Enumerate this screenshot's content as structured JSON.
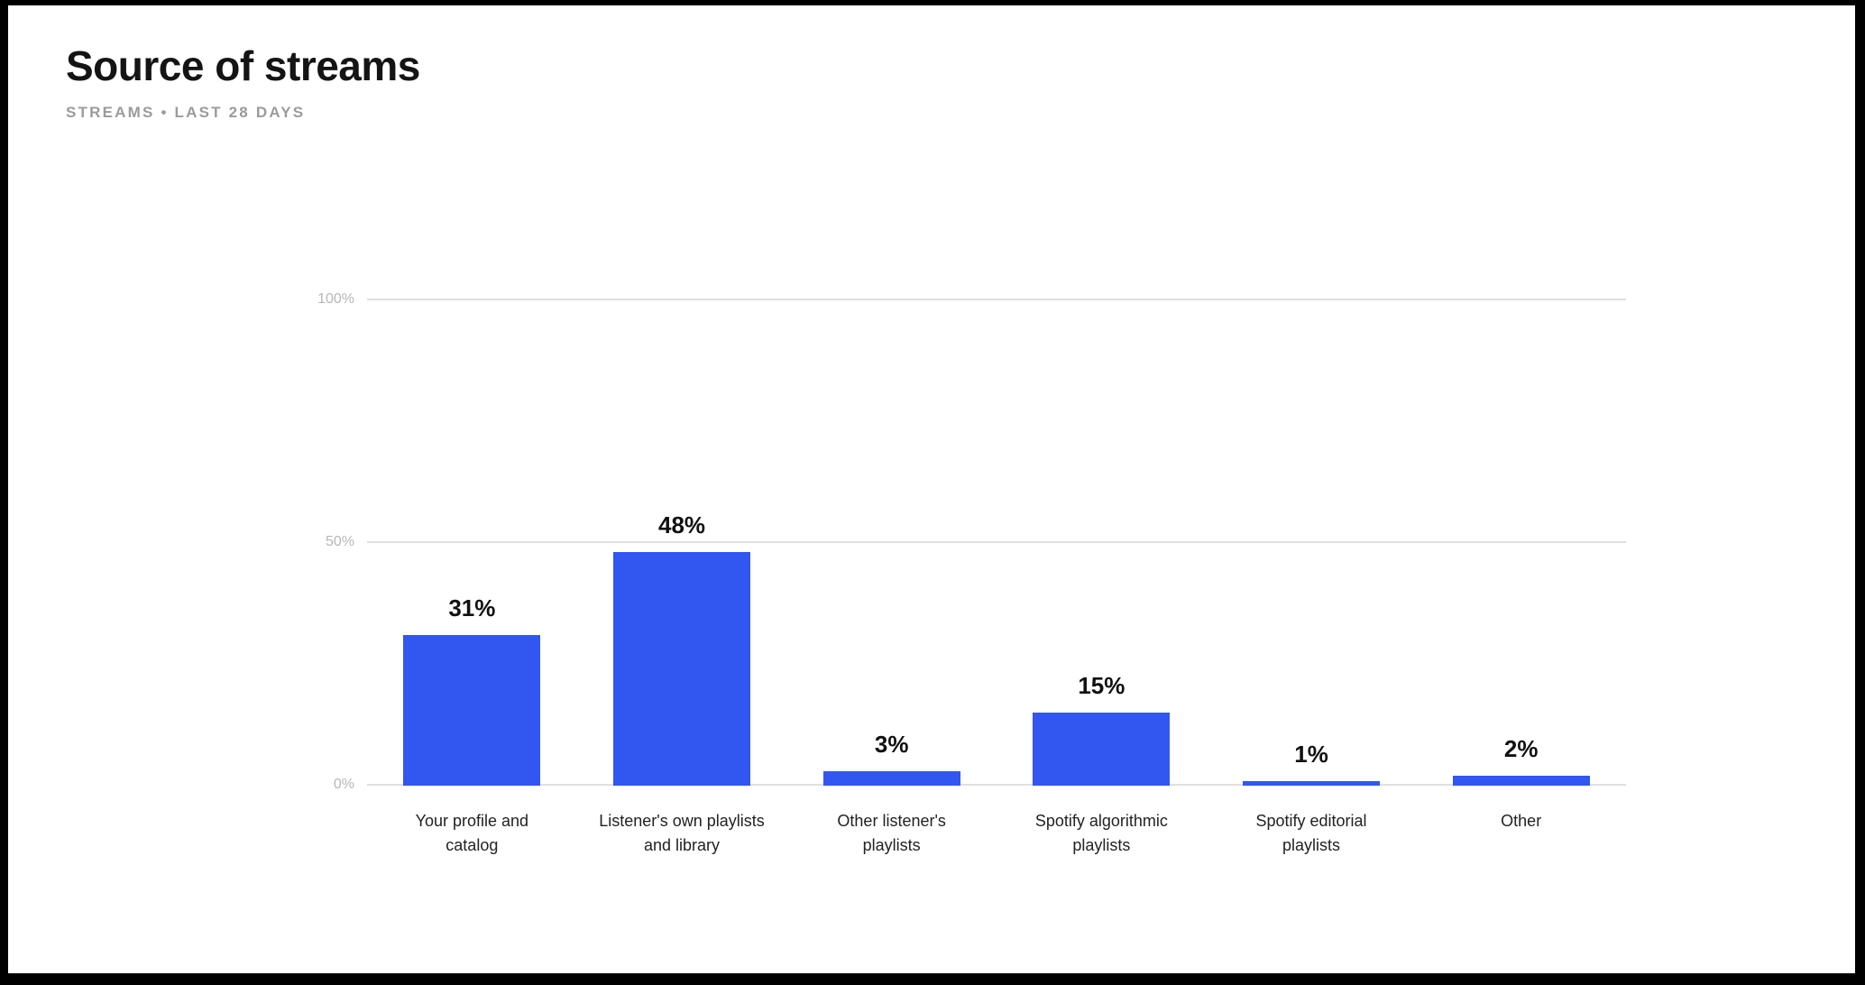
{
  "page": {
    "title": "Source of streams",
    "subtitle": "STREAMS • LAST 28 DAYS"
  },
  "chart_data": {
    "type": "bar",
    "title": "Source of streams",
    "subtitle": "STREAMS • LAST 28 DAYS",
    "categories": [
      "Your profile and catalog",
      "Listener's own playlists and library",
      "Other listener's playlists",
      "Spotify algorithmic playlists",
      "Spotify editorial playlists",
      "Other"
    ],
    "values": [
      31,
      48,
      3,
      15,
      1,
      2
    ],
    "value_labels": [
      "31%",
      "48%",
      "3%",
      "15%",
      "1%",
      "2%"
    ],
    "unit": "%",
    "xlabel": "",
    "ylabel": "",
    "ylim": [
      0,
      100
    ],
    "yticks": [
      "0%",
      "50%",
      "100%"
    ],
    "grid": "horizontal",
    "legend": "none",
    "bar_color": "#3256f0",
    "gridline_color": "#e0e0e0",
    "tick_label_color": "#b7b7b7"
  }
}
